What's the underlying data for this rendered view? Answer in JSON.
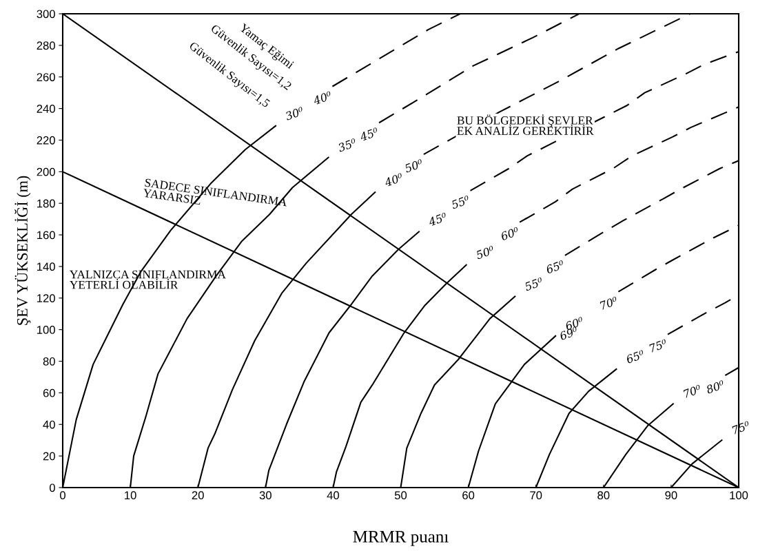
{
  "chart_data": {
    "type": "line",
    "xlabel": "MRMR puanı",
    "ylabel": "ŞEV YÜKSEKLİĞİ (m)",
    "xlim": [
      0,
      100
    ],
    "ylim": [
      0,
      300
    ],
    "xticks": [
      0,
      10,
      20,
      30,
      40,
      50,
      60,
      70,
      80,
      90,
      100
    ],
    "yticks": [
      0,
      20,
      40,
      60,
      80,
      100,
      120,
      140,
      160,
      180,
      200,
      220,
      240,
      260,
      280,
      300
    ],
    "grid": false,
    "legend": false,
    "marker": "none",
    "series": [
      {
        "color": "#000000",
        "line_style": "solid",
        "x": [
          0,
          100
        ],
        "values": [
          300,
          0
        ]
      },
      {
        "color": "#000000",
        "line_style": "solid",
        "x": [
          0,
          100
        ],
        "values": [
          200,
          0
        ]
      },
      {
        "name": "30⁰",
        "color": "#000000",
        "line_style": "solid",
        "x": [
          0,
          2,
          4.5,
          8.9,
          11.6,
          16,
          22,
          27,
          31.5
        ],
        "values": [
          0,
          43,
          78,
          116,
          137,
          163,
          193,
          214,
          229
        ]
      },
      {
        "name": "35⁰",
        "color": "#000000",
        "line_style": "solid",
        "x": [
          10,
          10.5,
          12.3,
          14.1,
          18.4,
          22.7,
          26.5,
          30.6,
          34,
          39.3
        ],
        "values": [
          0,
          20,
          45,
          72,
          107,
          134,
          156,
          173,
          190,
          209
        ]
      },
      {
        "name": "40⁰",
        "color": "#000000",
        "line_style": "solid",
        "x": [
          20,
          21.5,
          22.5,
          25.1,
          28.4,
          32.4,
          36,
          42.7,
          46.2
        ],
        "values": [
          0,
          25,
          34,
          62,
          93,
          123,
          142,
          173,
          187
        ]
      },
      {
        "name": "45⁰",
        "color": "#000000",
        "line_style": "solid",
        "x": [
          30,
          30.5,
          33.1,
          35.7,
          39.4,
          42.7,
          45.8,
          49.7,
          52.7
        ],
        "values": [
          0,
          11,
          40,
          67,
          98,
          116,
          134,
          151,
          162
        ]
      },
      {
        "name": "50⁰",
        "color": "#000000",
        "line_style": "solid",
        "x": [
          40,
          40.5,
          41.9,
          44.1,
          45.8,
          50.5,
          53.5,
          56.7,
          59.7
        ],
        "values": [
          0,
          10,
          26,
          54,
          65,
          98,
          115,
          129,
          141
        ]
      },
      {
        "name": "55⁰",
        "color": "#000000",
        "line_style": "solid",
        "x": [
          50,
          50.9,
          53,
          55,
          58.5,
          63.2,
          66.9
        ],
        "values": [
          0,
          25,
          47,
          65,
          81,
          107,
          121
        ]
      },
      {
        "name": "60⁰",
        "color": "#000000",
        "line_style": "solid",
        "x": [
          60,
          61.5,
          64,
          68.3,
          72.9
        ],
        "values": [
          0,
          23,
          53,
          78,
          96
        ]
      },
      {
        "name": "65⁰",
        "color": "#000000",
        "line_style": "solid",
        "x": [
          70,
          72,
          74.9,
          77.8,
          81.9
        ],
        "values": [
          0,
          21,
          47,
          61,
          75
        ]
      },
      {
        "name": "70⁰",
        "color": "#000000",
        "line_style": "solid",
        "x": [
          80,
          83.3,
          86.5,
          90.3
        ],
        "values": [
          0,
          21,
          39,
          53
        ]
      },
      {
        "name": "75⁰",
        "color": "#000000",
        "line_style": "solid",
        "x": [
          90,
          93.1,
          97.5
        ],
        "values": [
          0,
          15,
          30
        ]
      },
      {
        "name": "40⁰",
        "color": "#000000",
        "line_style": "dashed",
        "x": [
          39.9,
          54.1,
          58.8
        ],
        "values": [
          254,
          290,
          300
        ]
      },
      {
        "name": "45⁰",
        "color": "#000000",
        "line_style": "dashed",
        "x": [
          46.8,
          52.3,
          60.7,
          69.6,
          76.4
        ],
        "values": [
          231,
          245,
          267,
          285,
          300
        ]
      },
      {
        "name": "50⁰",
        "color": "#000000",
        "line_style": "dashed",
        "x": [
          53.4,
          64.7,
          73.3,
          82.2,
          92.8
        ],
        "values": [
          211,
          238,
          257,
          278,
          300
        ]
      },
      {
        "name": "55⁰",
        "color": "#000000",
        "line_style": "dashed",
        "x": [
          60.3,
          66,
          68.7,
          83.5,
          86.1,
          92.2,
          94.9,
          100
        ],
        "values": [
          188,
          202,
          210,
          242,
          250,
          262,
          268,
          276
        ]
      },
      {
        "name": "60⁰",
        "color": "#000000",
        "line_style": "dashed",
        "x": [
          67.6,
          72.9,
          75.4,
          81.4,
          84.2,
          90.2,
          92.9,
          100
        ],
        "values": [
          168,
          181,
          189,
          202,
          210,
          222,
          228,
          241
        ]
      },
      {
        "name": "65⁰",
        "color": "#000000",
        "line_style": "dashed",
        "x": [
          74.3,
          80.1,
          82.9,
          88.9,
          91.4,
          97.2,
          100
        ],
        "values": [
          147,
          162,
          169,
          183,
          189,
          202,
          207
        ]
      },
      {
        "name": "70⁰",
        "color": "#000000",
        "line_style": "dashed",
        "x": [
          82.2,
          87.7,
          90.2,
          96.2,
          100
        ],
        "values": [
          124,
          138,
          144,
          158,
          166
        ]
      },
      {
        "name": "75⁰",
        "color": "#000000",
        "line_style": "dashed",
        "x": [
          89.5,
          95.3,
          98,
          100
        ],
        "values": [
          97,
          111,
          117,
          122
        ]
      },
      {
        "name": "80⁰",
        "color": "#000000",
        "line_style": "dashed",
        "x": [
          98,
          100
        ],
        "values": [
          71,
          76
        ]
      }
    ],
    "annotations": [
      "Yamaç Eğimi",
      "Güvenlik Sayısı=1,2",
      "Güvenlik Sayısı=1,5",
      "SADECE SINIFLANDIRMA\nYARARSIZ",
      "YALNIZCA SINIFLANDIRMA\nYETERLİ OLABİLİR",
      "BU BÖLGEDEKİ ŞEVLER\nEK ANALİZ GEREKTİRİR",
      "69⁰"
    ]
  }
}
